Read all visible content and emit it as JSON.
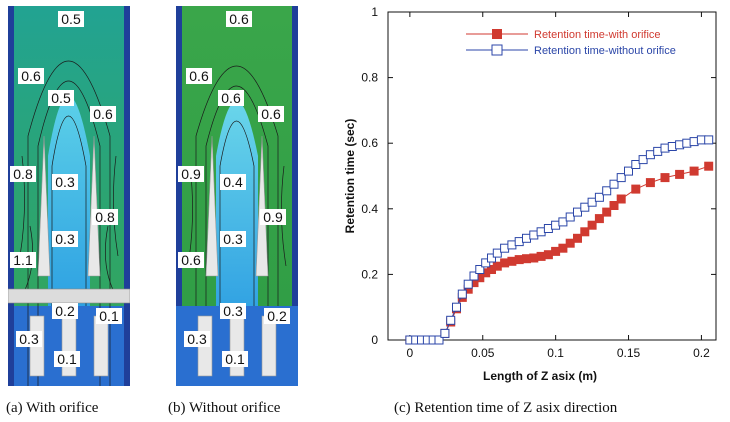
{
  "figure": {
    "captions": {
      "a": "(a) With orifice",
      "b": "(b) Without orifice",
      "c": "(c) Retention time of Z asix direction"
    }
  },
  "contour_a": {
    "labels": [
      "0.5",
      "0.6",
      "0.5",
      "0.6",
      "0.8",
      "0.3",
      "0.8",
      "0.3",
      "1.1",
      "0.2",
      "0.1",
      "0.3",
      "0.1"
    ]
  },
  "contour_b": {
    "labels": [
      "0.6",
      "0.6",
      "0.6",
      "0.6",
      "0.9",
      "0.4",
      "0.9",
      "0.3",
      "0.6",
      "0.3",
      "0.2",
      "0.3",
      "0.1"
    ]
  },
  "colors": {
    "with_orifice": "#d03a30",
    "without_orifice": "#2b46a8",
    "flow_green": "#3aa64a",
    "flow_blue": "#1e9be0"
  },
  "chart_data": {
    "type": "line",
    "xlabel": "Length of Z asix (m)",
    "ylabel": "Retention time (sec)",
    "xlim": [
      -0.015,
      0.21
    ],
    "ylim": [
      0,
      1
    ],
    "xticks": [
      0,
      0.05,
      0.1,
      0.15,
      0.2
    ],
    "xtick_labels": [
      "0",
      "0.05",
      "0.1",
      "0.15",
      "0.2"
    ],
    "yticks": [
      0,
      0.2,
      0.4,
      0.6,
      0.8,
      1
    ],
    "ytick_labels": [
      "0",
      "0.2",
      "0.4",
      "0.6",
      "0.8",
      "1"
    ],
    "legend_position": "top-right",
    "series": [
      {
        "name": "Retention time-with orifice",
        "marker": "filled-square",
        "x": [
          0,
          0.004,
          0.008,
          0.012,
          0.016,
          0.02,
          0.024,
          0.028,
          0.032,
          0.036,
          0.04,
          0.044,
          0.048,
          0.052,
          0.056,
          0.06,
          0.065,
          0.07,
          0.075,
          0.08,
          0.085,
          0.09,
          0.095,
          0.1,
          0.105,
          0.11,
          0.115,
          0.12,
          0.125,
          0.13,
          0.135,
          0.14,
          0.145,
          0.155,
          0.165,
          0.175,
          0.185,
          0.195,
          0.205
        ],
        "y": [
          0,
          0,
          0,
          0,
          0,
          0,
          0.02,
          0.055,
          0.095,
          0.13,
          0.155,
          0.175,
          0.19,
          0.205,
          0.215,
          0.225,
          0.235,
          0.24,
          0.245,
          0.248,
          0.25,
          0.255,
          0.26,
          0.27,
          0.28,
          0.295,
          0.31,
          0.33,
          0.35,
          0.37,
          0.39,
          0.41,
          0.43,
          0.46,
          0.48,
          0.495,
          0.505,
          0.515,
          0.53
        ]
      },
      {
        "name": "Retention time-without orifice",
        "marker": "open-square",
        "x": [
          0,
          0.004,
          0.008,
          0.012,
          0.016,
          0.02,
          0.024,
          0.028,
          0.032,
          0.036,
          0.04,
          0.044,
          0.048,
          0.052,
          0.056,
          0.06,
          0.065,
          0.07,
          0.075,
          0.08,
          0.085,
          0.09,
          0.095,
          0.1,
          0.105,
          0.11,
          0.115,
          0.12,
          0.125,
          0.13,
          0.135,
          0.14,
          0.145,
          0.15,
          0.155,
          0.16,
          0.165,
          0.17,
          0.175,
          0.18,
          0.185,
          0.19,
          0.195,
          0.2,
          0.205
        ],
        "y": [
          0,
          0,
          0,
          0,
          0,
          0,
          0.02,
          0.06,
          0.1,
          0.14,
          0.17,
          0.195,
          0.215,
          0.235,
          0.25,
          0.265,
          0.28,
          0.29,
          0.3,
          0.31,
          0.32,
          0.33,
          0.34,
          0.35,
          0.36,
          0.375,
          0.39,
          0.405,
          0.42,
          0.435,
          0.455,
          0.475,
          0.495,
          0.515,
          0.535,
          0.55,
          0.565,
          0.575,
          0.585,
          0.59,
          0.595,
          0.6,
          0.605,
          0.61,
          0.61
        ]
      }
    ]
  }
}
